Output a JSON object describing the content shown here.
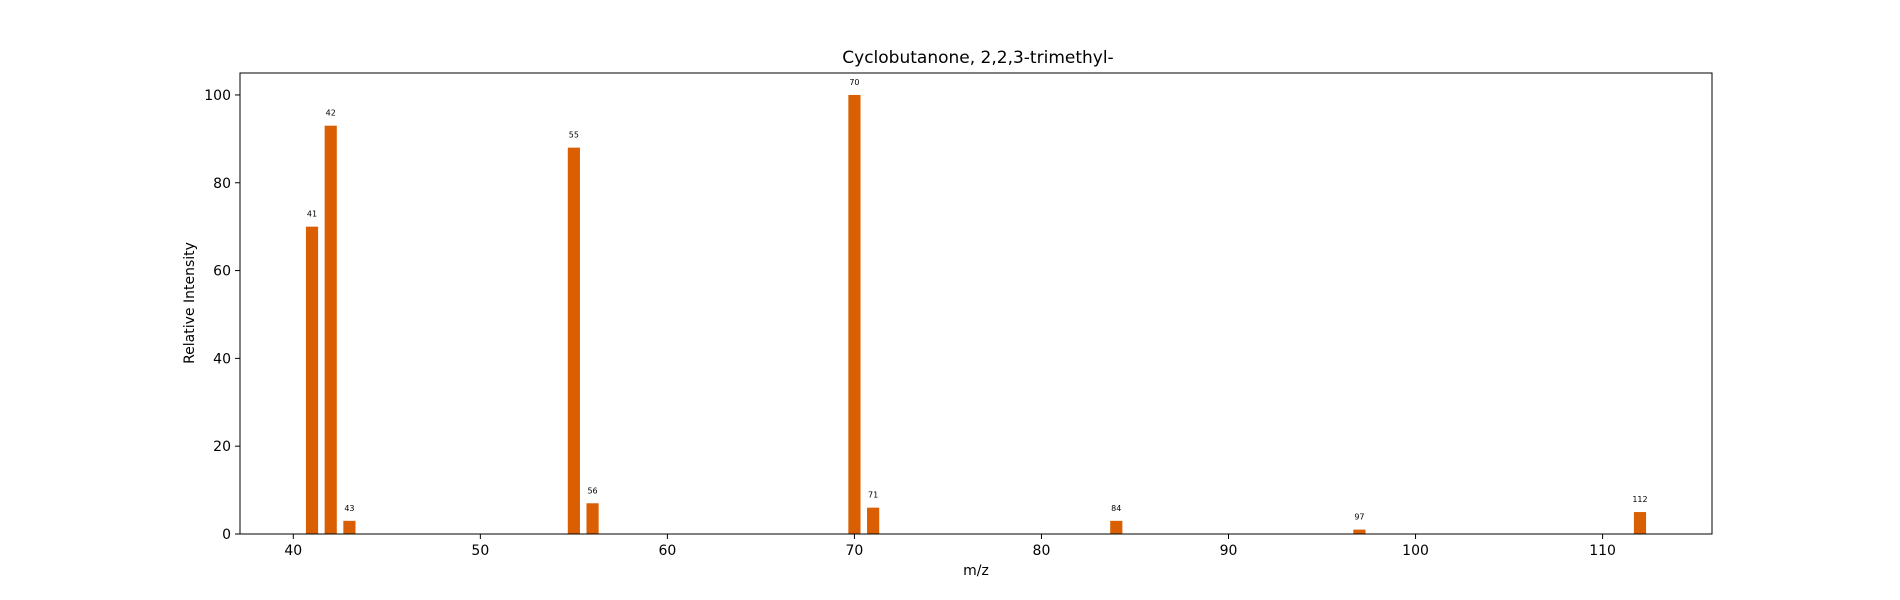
{
  "chart_data": {
    "type": "bar",
    "title": "Cyclobutanone, 2,2,3-trimethyl-",
    "xlabel": "m/z",
    "ylabel": "Relative Intensity",
    "xlim": [
      37.15,
      115.85
    ],
    "ylim": [
      0,
      105
    ],
    "xticks": [
      40,
      50,
      60,
      70,
      80,
      90,
      100,
      110
    ],
    "yticks": [
      0,
      20,
      40,
      60,
      80,
      100
    ],
    "grid": false,
    "bar_color": "#d95f02",
    "series": [
      {
        "x": [
          41,
          42,
          43,
          55,
          56,
          70,
          71,
          84,
          97,
          112
        ],
        "values": [
          70,
          93,
          3,
          88,
          7,
          100,
          6,
          3,
          1,
          5
        ],
        "labels": [
          "41",
          "42",
          "43",
          "55",
          "56",
          "70",
          "71",
          "84",
          "97",
          "112"
        ]
      }
    ]
  }
}
